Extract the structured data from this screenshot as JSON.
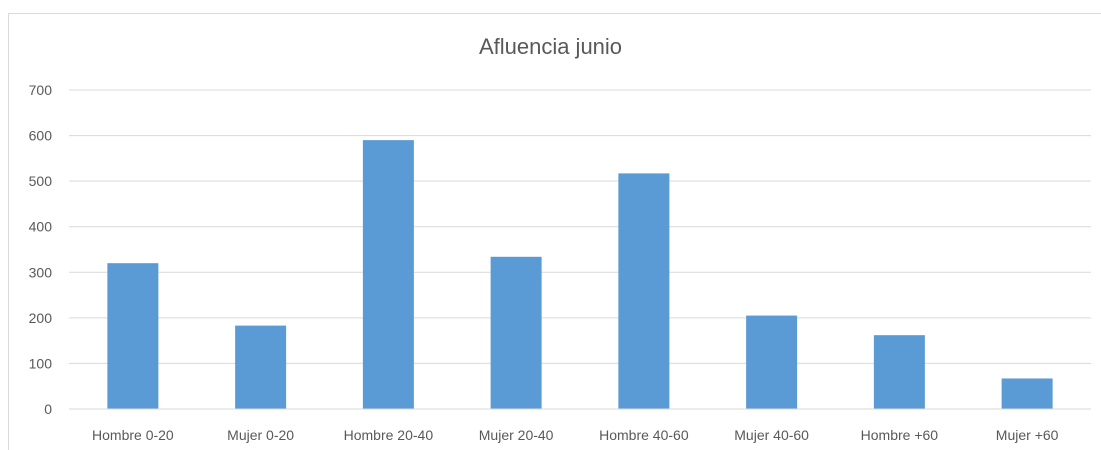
{
  "chart_data": {
    "type": "bar",
    "title": "Afluencia junio",
    "categories": [
      "Hombre 0-20",
      "Mujer 0-20",
      "Hombre 20-40",
      "Mujer 20-40",
      "Hombre 40-60",
      "Mujer 40-60",
      "Hombre +60",
      "Mujer +60"
    ],
    "values": [
      320,
      183,
      590,
      334,
      517,
      205,
      162,
      67
    ],
    "ylim": [
      0,
      700
    ],
    "yticks": [
      "0",
      "100",
      "200",
      "300",
      "400",
      "500",
      "600",
      "700"
    ],
    "grid": true,
    "bar_color": "#5b9bd5",
    "grid_color": "#d9d9d9",
    "text_color": "#595959"
  }
}
